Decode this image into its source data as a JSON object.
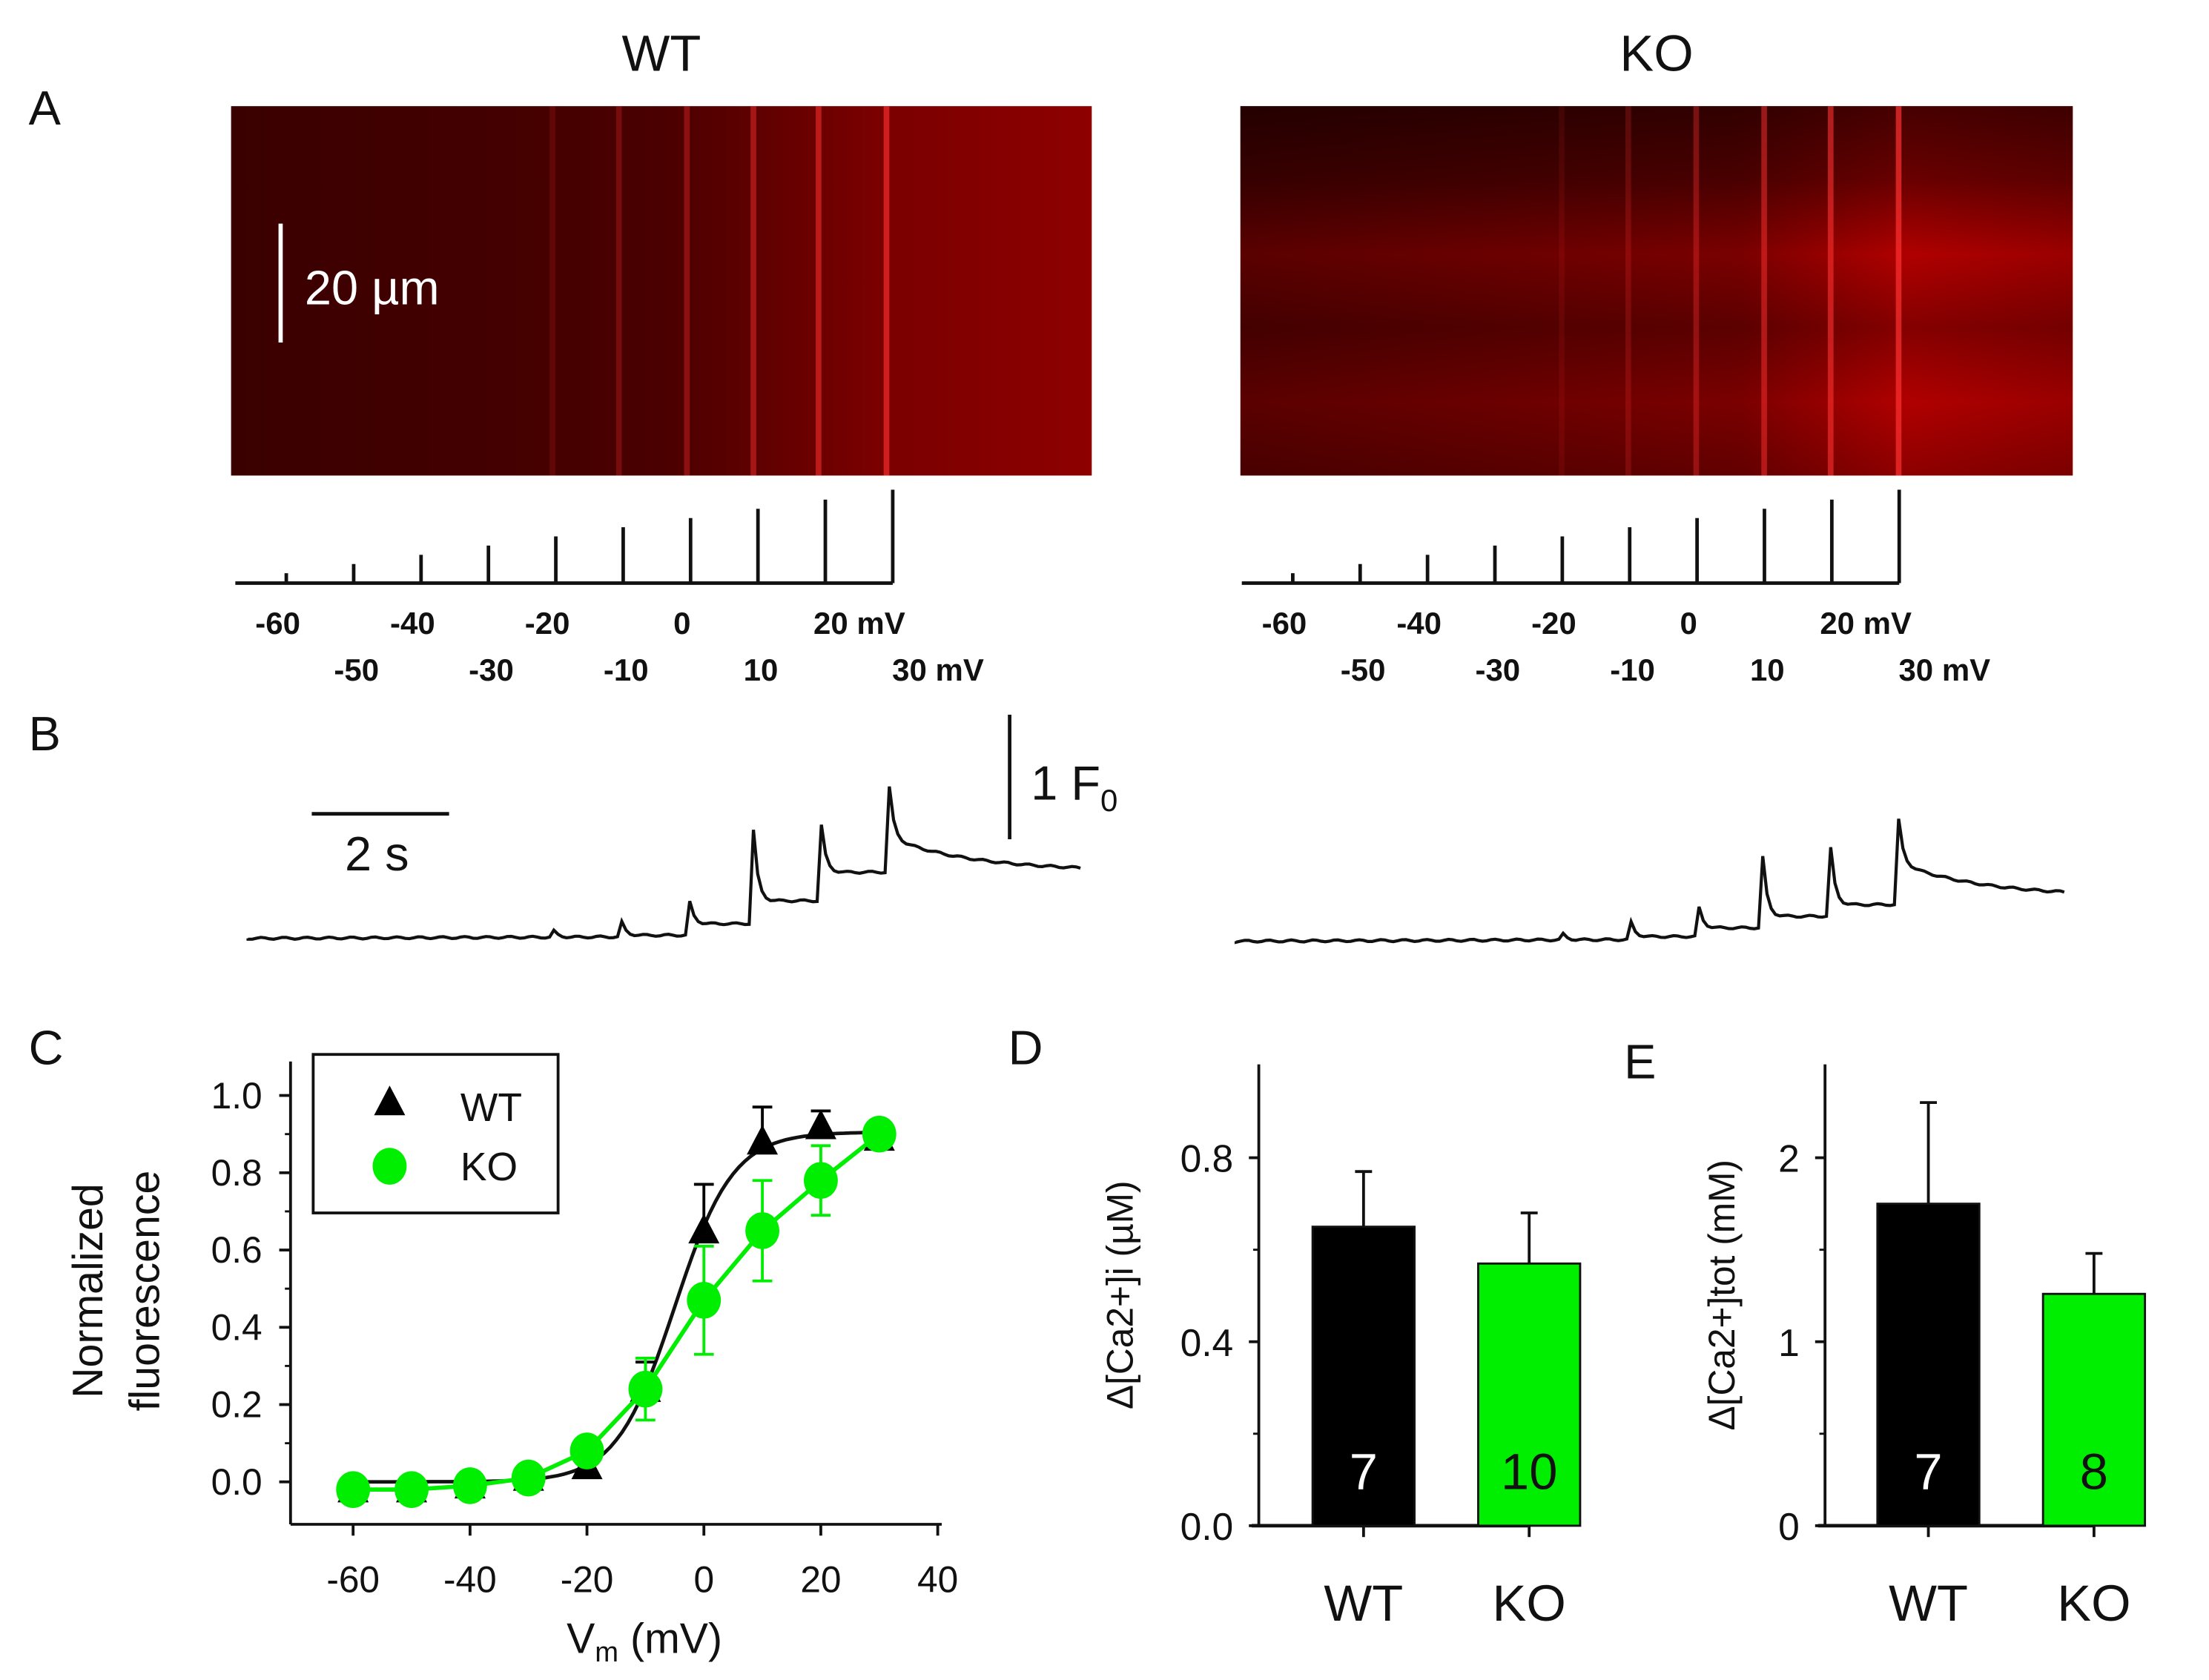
{
  "panel_labels": {
    "A": "A",
    "B": "B",
    "C": "C",
    "D": "D",
    "E": "E"
  },
  "panelA": {
    "titles": [
      "WT",
      "KO"
    ],
    "scale_bar": "20 µm",
    "protocol_row1": [
      "-60",
      "-40",
      "-20",
      "0",
      "20 mV"
    ],
    "protocol_row2": [
      "-50",
      "-30",
      "-10",
      "10",
      "30 mV"
    ],
    "colors": {
      "image": "#8b0000"
    }
  },
  "panelB": {
    "time_bar": "2 s",
    "amp_bar": "1 F",
    "amp_sub": "0"
  },
  "chart_data": [
    {
      "id": "C",
      "type": "scatter",
      "xlabel": "V",
      "xlabel_sub": "m",
      "xlabel_unit": " (mV)",
      "ylabel": [
        "Normalized",
        "fluorescence"
      ],
      "xlim": [
        -70,
        40
      ],
      "ylim": [
        -0.05,
        1.1
      ],
      "xticks": [
        -60,
        -40,
        -20,
        0,
        20,
        40
      ],
      "xtick_labels": [
        "-60",
        "-40",
        "-20",
        "0",
        "20",
        "40"
      ],
      "yticks": [
        0,
        0.2,
        0.4,
        0.6,
        0.8,
        1.0
      ],
      "ytick_labels": [
        "0.0",
        "0.2",
        "0.4",
        "0.6",
        "0.8",
        "1.0"
      ],
      "legend_position": "top-left",
      "x": [
        -60,
        -50,
        -40,
        -30,
        -20,
        -10,
        0,
        10,
        20,
        30
      ],
      "series": [
        {
          "name": "WT",
          "marker": "triangle",
          "color": "#000000",
          "values": [
            -0.02,
            -0.02,
            -0.01,
            0.01,
            0.04,
            0.24,
            0.65,
            0.88,
            0.92,
            0.89
          ],
          "errors": [
            0.02,
            0.02,
            0.02,
            0.02,
            0.03,
            0.07,
            0.12,
            0.09,
            0.04,
            0.02
          ]
        },
        {
          "name": "KO",
          "marker": "circle",
          "color": "#00ee00",
          "values": [
            -0.02,
            -0.02,
            -0.01,
            0.01,
            0.08,
            0.24,
            0.47,
            0.65,
            0.78,
            0.9
          ],
          "errors": [
            0.02,
            0.02,
            0.02,
            0.02,
            0.02,
            0.08,
            0.14,
            0.13,
            0.09,
            0.02
          ]
        }
      ]
    },
    {
      "id": "D",
      "type": "bar",
      "categories": [
        "WT",
        "KO"
      ],
      "values": [
        0.65,
        0.57
      ],
      "errors": [
        0.12,
        0.11
      ],
      "n_labels": [
        "7",
        "10"
      ],
      "colors": [
        "#000000",
        "#00ee00"
      ],
      "ylabel": "Δ[Ca2+]i (µM)",
      "ylim": [
        0,
        1.0
      ],
      "yticks": [
        0,
        0.4,
        0.8
      ],
      "ytick_labels": [
        "0.0",
        "0.4",
        "0.8"
      ]
    },
    {
      "id": "E",
      "type": "bar",
      "categories": [
        "WT",
        "KO"
      ],
      "values": [
        1.75,
        1.26
      ],
      "errors": [
        0.55,
        0.22
      ],
      "n_labels": [
        "7",
        "8"
      ],
      "colors": [
        "#000000",
        "#00ee00"
      ],
      "ylabel": "Δ[Ca2+]tot (mM)",
      "ylim": [
        0,
        2.5
      ],
      "yticks": [
        0,
        1,
        2
      ],
      "ytick_labels": [
        "0",
        "1",
        "2"
      ]
    }
  ]
}
